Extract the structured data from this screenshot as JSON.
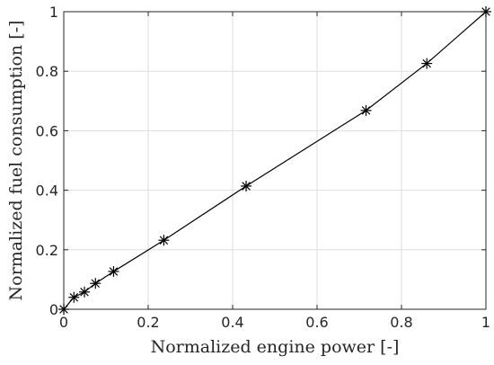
{
  "chart_data": {
    "type": "line",
    "xlabel": "Normalized engine power [-]",
    "ylabel": "Normalized fuel consumption [-]",
    "xlim": [
      0,
      1
    ],
    "ylim": [
      0,
      1
    ],
    "x_ticks": [
      0,
      0.2,
      0.4,
      0.6,
      0.8,
      1
    ],
    "y_ticks": [
      0,
      0.2,
      0.4,
      0.6,
      0.8,
      1
    ],
    "x_tick_labels": [
      "0",
      "0.2",
      "0.4",
      "0.6",
      "0.8",
      "1"
    ],
    "y_tick_labels": [
      "0",
      "0.2",
      "0.4",
      "0.6",
      "0.8",
      "1"
    ],
    "grid": true,
    "series": [
      {
        "marker": "asterisk",
        "color": "#000000",
        "x": [
          0,
          0.024,
          0.049,
          0.075,
          0.118,
          0.237,
          0.432,
          0.716,
          0.86,
          1.0
        ],
        "y": [
          0,
          0.04,
          0.058,
          0.087,
          0.127,
          0.232,
          0.414,
          0.668,
          0.826,
          1.0
        ]
      }
    ]
  }
}
